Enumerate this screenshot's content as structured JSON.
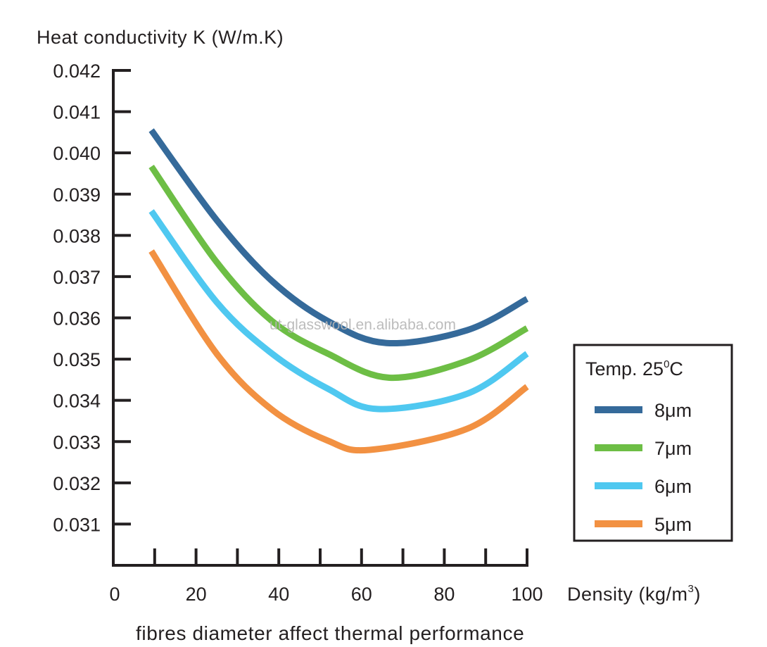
{
  "chart_data": {
    "type": "line",
    "ylabel": "Heat conductivity K (W/m.K)",
    "xlabel": "Density (kg/m³)",
    "xlabel_parts": {
      "main": "Density (kg/m",
      "sup": "3",
      "end": ")"
    },
    "caption": "fibres diameter affect thermal performance",
    "watermark": "ut-glasswool.en.alibaba.com",
    "xlim": [
      0,
      100
    ],
    "ylim": [
      0.03,
      0.042
    ],
    "x_ticks": [
      "0",
      "20",
      "40",
      "60",
      "80",
      "100"
    ],
    "y_ticks": [
      "0.042",
      "0.041",
      "0.040",
      "0.039",
      "0.038",
      "0.037",
      "0.036",
      "0.035",
      "0.034",
      "0.033",
      "0.032",
      "0.031"
    ],
    "grid": false,
    "legend": {
      "title": "Temp. 25⁰C",
      "title_parts": {
        "main": "Temp. 25",
        "sup": "0",
        "end": "C"
      },
      "placement": "right"
    },
    "series": [
      {
        "name": "8μm",
        "color": "#356a9a",
        "x": [
          9.2,
          25,
          38.4,
          51.9,
          66,
          85.5,
          100
        ],
        "y": [
          0.04055,
          0.03837,
          0.03689,
          0.03592,
          0.03539,
          0.0357,
          0.03646
        ]
      },
      {
        "name": "7μm",
        "color": "#6dbe45",
        "x": [
          9.2,
          25,
          38.4,
          51.9,
          66.7,
          85.5,
          100
        ],
        "y": [
          0.03967,
          0.03735,
          0.03592,
          0.03513,
          0.03455,
          0.03496,
          0.03575
        ]
      },
      {
        "name": "6μm",
        "color": "#4fc8f0",
        "x": [
          9.2,
          25,
          38.4,
          51.9,
          64,
          85.5,
          100
        ],
        "y": [
          0.03859,
          0.03638,
          0.03513,
          0.03428,
          0.03379,
          0.03416,
          0.03513
        ]
      },
      {
        "name": "5μm",
        "color": "#f29142",
        "x": [
          9.2,
          25,
          38.4,
          51.9,
          62,
          85.5,
          100
        ],
        "y": [
          0.03762,
          0.03513,
          0.03377,
          0.03302,
          0.0328,
          0.03331,
          0.03433
        ]
      }
    ]
  }
}
